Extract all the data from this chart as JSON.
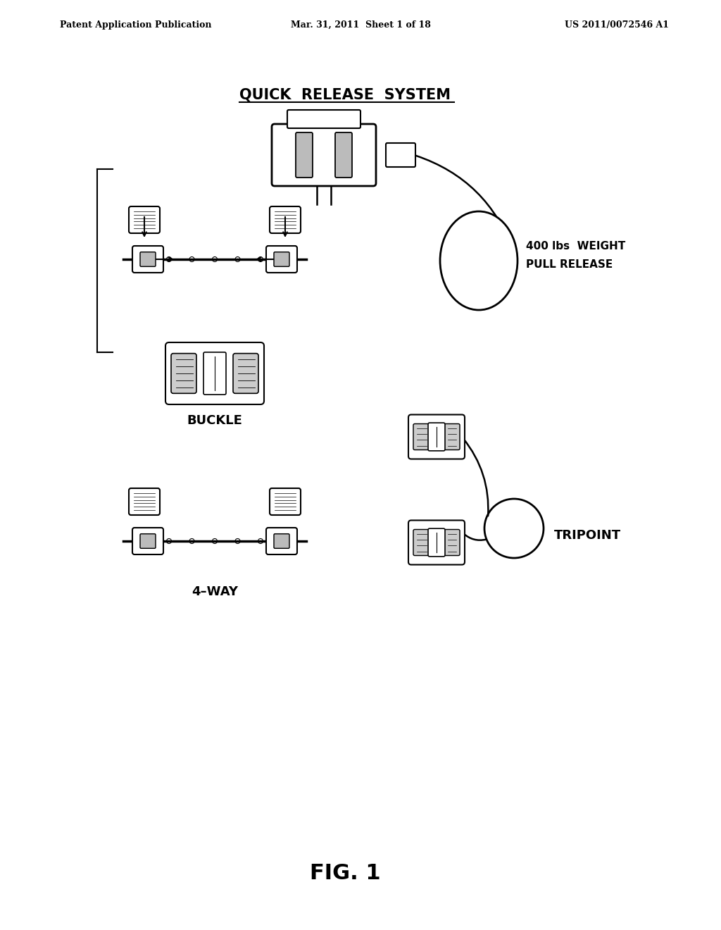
{
  "bg_color": "#ffffff",
  "text_color": "#000000",
  "header_left": "Patent Application Publication",
  "header_center": "Mar. 31, 2011  Sheet 1 of 18",
  "header_right": "US 2011/0072546 A1",
  "title": "QUICK  RELEASE  SYSTEM",
  "fig_label": "FIG. 1",
  "label_buckle": "BUCKLE",
  "label_4way": "4–WAY",
  "label_tripoint": "TRIPOINT",
  "label_weight_line1": "400 lbs  WEIGHT",
  "label_weight_line2": "PULL RELEASE"
}
